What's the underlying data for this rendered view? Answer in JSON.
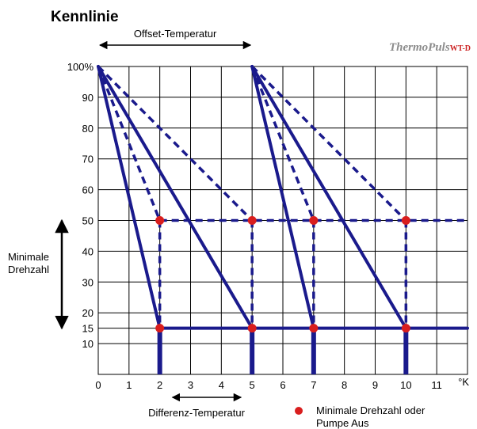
{
  "chart_data": {
    "type": "line",
    "title": "Kennlinie",
    "brand": {
      "main": "ThermoPuls",
      "suffix": "WT-D"
    },
    "x_unit": "°K",
    "x_ticks": [
      "0",
      "1",
      "2",
      "3",
      "4",
      "5",
      "6",
      "7",
      "8",
      "9",
      "10",
      "11"
    ],
    "y_ticks": [
      {
        "label": "100%",
        "value": 100
      },
      {
        "label": "90",
        "value": 90
      },
      {
        "label": "80",
        "value": 80
      },
      {
        "label": "70",
        "value": 70
      },
      {
        "label": "60",
        "value": 60
      },
      {
        "label": "50",
        "value": 50
      },
      {
        "label": "40",
        "value": 40
      },
      {
        "label": "30",
        "value": 30
      },
      {
        "label": "20",
        "value": 20
      },
      {
        "label": "15",
        "value": 15
      },
      {
        "label": "10",
        "value": 10
      }
    ],
    "xlim": [
      0,
      12
    ],
    "ylim": [
      0,
      100
    ],
    "grid": true,
    "annotations": {
      "offset": "Offset-Temperatur",
      "offset_range": [
        0,
        5
      ],
      "differenz": "Differenz-Temperatur",
      "differenz_range": [
        2,
        5
      ],
      "min_drehzahl": [
        "Minimale",
        "Drehzahl"
      ],
      "min_drehzahl_range": [
        15,
        50
      ]
    },
    "legend": {
      "label": [
        "Minimale Drehzahl oder",
        "Pumpe Aus"
      ],
      "color": "#d91e1e"
    },
    "colors": {
      "line": "#1a1a8c",
      "point": "#d91e1e",
      "grid": "#000000"
    },
    "solid_lines": [
      [
        [
          0,
          100
        ],
        [
          2,
          15
        ]
      ],
      [
        [
          0,
          100
        ],
        [
          5,
          15
        ]
      ],
      [
        [
          5,
          100
        ],
        [
          7,
          15
        ]
      ],
      [
        [
          5,
          100
        ],
        [
          10,
          15
        ]
      ],
      [
        [
          2,
          15
        ],
        [
          12,
          15
        ]
      ]
    ],
    "dashed_lines": [
      [
        [
          0,
          100
        ],
        [
          2,
          50
        ]
      ],
      [
        [
          0,
          100
        ],
        [
          5,
          50
        ]
      ],
      [
        [
          5,
          100
        ],
        [
          7,
          50
        ]
      ],
      [
        [
          5,
          100
        ],
        [
          10,
          50
        ]
      ],
      [
        [
          2,
          50
        ],
        [
          12,
          50
        ]
      ],
      [
        [
          2,
          50
        ],
        [
          2,
          15
        ]
      ],
      [
        [
          5,
          50
        ],
        [
          5,
          15
        ]
      ],
      [
        [
          7,
          50
        ],
        [
          7,
          15
        ]
      ],
      [
        [
          10,
          50
        ],
        [
          10,
          15
        ]
      ]
    ],
    "verticals": [
      [
        2,
        15
      ],
      [
        5,
        15
      ],
      [
        7,
        15
      ],
      [
        10,
        15
      ]
    ],
    "points": [
      [
        2,
        50
      ],
      [
        5,
        50
      ],
      [
        7,
        50
      ],
      [
        10,
        50
      ],
      [
        2,
        15
      ],
      [
        5,
        15
      ],
      [
        7,
        15
      ],
      [
        10,
        15
      ]
    ]
  }
}
